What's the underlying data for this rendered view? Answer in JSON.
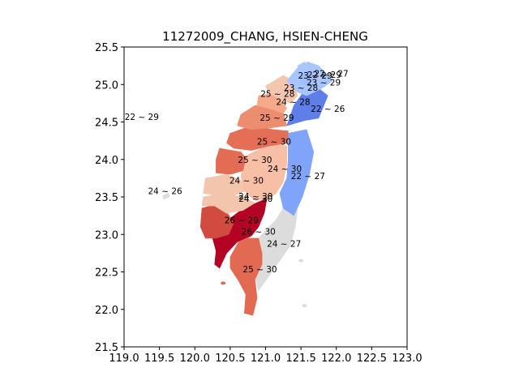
{
  "chart_data": {
    "type": "map",
    "title": "11272009_CHANG, HSIEN-CHENG",
    "xlim": [
      119.0,
      123.0
    ],
    "ylim": [
      21.5,
      25.5
    ],
    "xticks": [
      "119.0",
      "119.5",
      "120.0",
      "120.5",
      "121.0",
      "121.5",
      "122.0",
      "122.5",
      "123.0"
    ],
    "yticks": [
      "21.5",
      "22.0",
      "22.5",
      "23.0",
      "23.5",
      "24.0",
      "24.5",
      "25.0",
      "25.5"
    ],
    "region_labels": [
      {
        "text": "22 ~ 29",
        "lon": 121.83,
        "lat": 25.13
      },
      {
        "text": "23 ~ 29",
        "lon": 121.7,
        "lat": 25.12
      },
      {
        "text": "22 ~ 27",
        "lon": 121.93,
        "lat": 25.15
      },
      {
        "text": "23 ~ 29",
        "lon": 121.82,
        "lat": 25.03
      },
      {
        "text": "23 ~ 28",
        "lon": 121.5,
        "lat": 24.96
      },
      {
        "text": "25 ~ 28",
        "lon": 121.17,
        "lat": 24.88
      },
      {
        "text": "24 ~ 28",
        "lon": 121.39,
        "lat": 24.77
      },
      {
        "text": "22 ~ 26",
        "lon": 121.88,
        "lat": 24.68
      },
      {
        "text": "22 ~ 29",
        "lon": 119.25,
        "lat": 24.57
      },
      {
        "text": "25 ~ 29",
        "lon": 121.16,
        "lat": 24.56
      },
      {
        "text": "25 ~ 30",
        "lon": 121.12,
        "lat": 24.24
      },
      {
        "text": "25 ~ 30",
        "lon": 120.85,
        "lat": 24.0
      },
      {
        "text": "24 ~ 30",
        "lon": 121.27,
        "lat": 23.88
      },
      {
        "text": "22 ~ 27",
        "lon": 121.6,
        "lat": 23.78
      },
      {
        "text": "24 ~ 30",
        "lon": 120.73,
        "lat": 23.72
      },
      {
        "text": "24 ~ 26",
        "lon": 119.58,
        "lat": 23.58
      },
      {
        "text": "24 ~ 30",
        "lon": 120.86,
        "lat": 23.51
      },
      {
        "text": "24 ~ 30",
        "lon": 120.86,
        "lat": 23.48
      },
      {
        "text": "26 ~ 29",
        "lon": 120.66,
        "lat": 23.19
      },
      {
        "text": "26 ~ 30",
        "lon": 120.9,
        "lat": 23.04
      },
      {
        "text": "24 ~ 27",
        "lon": 121.26,
        "lat": 22.88
      },
      {
        "text": "25 ~ 30",
        "lon": 120.92,
        "lat": 22.54
      }
    ],
    "region_colors": {
      "north_tip": "#aac7fd",
      "taipei": "#9ebeff",
      "new_taipei_north": "#a7c5fe",
      "keelung": "#b2cbfb",
      "taoyuan": "#f4c6af",
      "hsinchu": "#f7a98b",
      "yilan": "#5f7fe8",
      "miaoli": "#ec8d70",
      "taichung": "#e46e56",
      "hualien": "#81a4fb",
      "changhua": "#e36c55",
      "nantou": "#f6bfa6",
      "yunlin": "#f4c5ad",
      "chiayi": "#f4c5ad",
      "tainan": "#d24b40",
      "kaohsiung": "#b40426",
      "taitung": "#dddcdc",
      "pingtung": "#e26952",
      "penghu": "#dddcdc"
    }
  }
}
